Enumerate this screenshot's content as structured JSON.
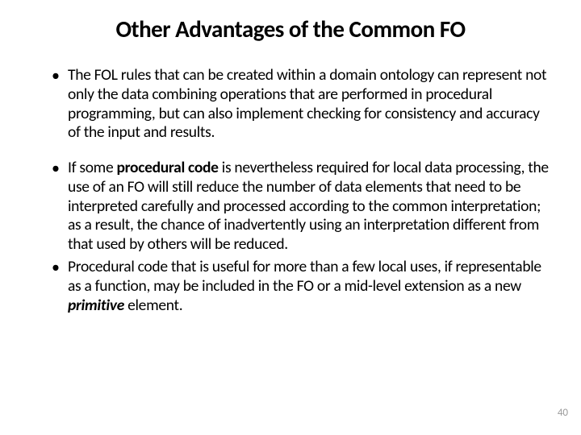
{
  "title": "Other Advantages of the Common FO",
  "bullets": [
    {
      "pre": "The FOL rules that can be created within a domain ontology can represent not only the data combining operations that are performed in procedural programming, but can also implement checking for consistency and accuracy of the input and results."
    },
    {
      "pre": "If some ",
      "bold": "procedural code",
      "post": " is nevertheless required for local data processing, the use of an FO will still reduce the number of data elements that need to be interpreted carefully and processed according to the common interpretation; as a result, the chance of inadvertently using an interpretation different from that used by others will be reduced."
    },
    {
      "pre": "Procedural code that is useful for more than a few local uses, if representable as a function, may be included in the FO or a mid-level extension as a new ",
      "italic": "primitive",
      "post": " element."
    }
  ],
  "page_number": "40"
}
